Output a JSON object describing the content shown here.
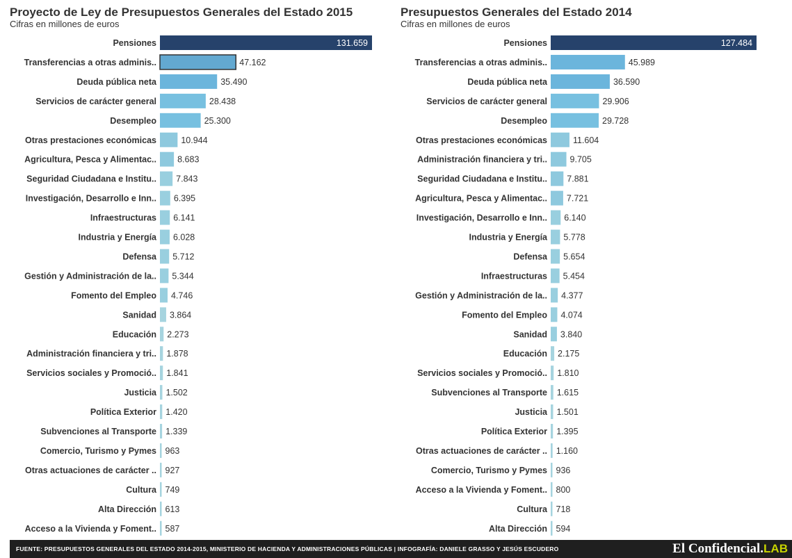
{
  "colors": {
    "top_bar": "#26426b",
    "highlight_bar": "#63a9d1",
    "bar_scale": [
      "#6bb5dc",
      "#77c0e0",
      "#8ec9de",
      "#99cfdf",
      "#a6d4df"
    ],
    "footer_bg": "#1f1f1f",
    "logo_accent": "#c8d400"
  },
  "footer": {
    "source": "FUENTE: PRESUPUESTOS GENERALES DEL ESTADO 2014-2015, MINISTERIO DE HACIENDA Y ADMINISTRACIONES PÚBLICAS | INFOGRAFÍA: DANIELE GRASSO Y JESÚS ESCUDERO",
    "logo_main": "El Confidencial.",
    "logo_accent": "LAB"
  },
  "chart_data": [
    {
      "type": "bar",
      "orientation": "horizontal",
      "title": "Proyecto de Ley de Presupuestos Generales del Estado 2015",
      "subtitle": "Cifras en millones de euros",
      "xlabel": "",
      "ylabel": "",
      "xlim": [
        0,
        131659
      ],
      "grid": false,
      "highlighted": "Transferencias a otras adminis..",
      "categories": [
        "Pensiones",
        "Transferencias a otras adminis..",
        "Deuda pública neta",
        "Servicios de carácter general",
        "Desempleo",
        "Otras prestaciones económicas",
        "Agricultura, Pesca y Alimentac..",
        "Seguridad Ciudadana e Institu..",
        "Investigación, Desarrollo e Inn..",
        "Infraestructuras",
        "Industria y Energía",
        "Defensa",
        "Gestión y Administración de la..",
        "Fomento del Empleo",
        "Sanidad",
        "Educación",
        "Administración financiera y tri..",
        "Servicios sociales y Promoció..",
        "Justicia",
        "Política Exterior",
        "Subvenciones al Transporte",
        "Comercio, Turismo y Pymes",
        "Otras actuaciones de carácter ..",
        "Cultura",
        "Alta Dirección",
        "Acceso a la Vivienda y Foment.."
      ],
      "values": [
        131659,
        47162,
        35490,
        28438,
        25300,
        10944,
        8683,
        7843,
        6395,
        6141,
        6028,
        5712,
        5344,
        4746,
        3864,
        2273,
        1878,
        1841,
        1502,
        1420,
        1339,
        963,
        927,
        749,
        613,
        587
      ],
      "value_labels": [
        "131.659",
        "47.162",
        "35.490",
        "28.438",
        "25.300",
        "10.944",
        "8.683",
        "7.843",
        "6.395",
        "6.141",
        "6.028",
        "5.712",
        "5.344",
        "4.746",
        "3.864",
        "2.273",
        "1.878",
        "1.841",
        "1.502",
        "1.420",
        "1.339",
        "963",
        "927",
        "749",
        "613",
        "587"
      ]
    },
    {
      "type": "bar",
      "orientation": "horizontal",
      "title": "Presupuestos Generales del Estado 2014",
      "subtitle": "Cifras en millones de euros",
      "xlabel": "",
      "ylabel": "",
      "xlim": [
        0,
        127484
      ],
      "grid": false,
      "highlighted": "",
      "categories": [
        "Pensiones",
        "Transferencias a otras adminis..",
        "Deuda pública neta",
        "Servicios de carácter general",
        "Desempleo",
        "Otras prestaciones económicas",
        "Administración financiera y tri..",
        "Seguridad Ciudadana e Institu..",
        "Agricultura, Pesca y Alimentac..",
        "Investigación, Desarrollo e Inn..",
        "Industria y Energía",
        "Defensa",
        "Infraestructuras",
        "Gestión y Administración de la..",
        "Fomento del Empleo",
        "Sanidad",
        "Educación",
        "Servicios sociales y Promoció..",
        "Subvenciones al Transporte",
        "Justicia",
        "Política Exterior",
        "Otras actuaciones de carácter ..",
        "Comercio, Turismo y Pymes",
        "Acceso a la Vivienda y Foment..",
        "Cultura",
        "Alta Dirección"
      ],
      "values": [
        127484,
        45989,
        36590,
        29906,
        29728,
        11604,
        9705,
        7881,
        7721,
        6140,
        5778,
        5654,
        5454,
        4377,
        4074,
        3840,
        2175,
        1810,
        1615,
        1501,
        1395,
        1160,
        936,
        800,
        718,
        594
      ],
      "value_labels": [
        "127.484",
        "45.989",
        "36.590",
        "29.906",
        "29.728",
        "11.604",
        "9.705",
        "7.881",
        "7.721",
        "6.140",
        "5.778",
        "5.654",
        "5.454",
        "4.377",
        "4.074",
        "3.840",
        "2.175",
        "1.810",
        "1.615",
        "1.501",
        "1.395",
        "1.160",
        "936",
        "800",
        "718",
        "594"
      ]
    }
  ]
}
